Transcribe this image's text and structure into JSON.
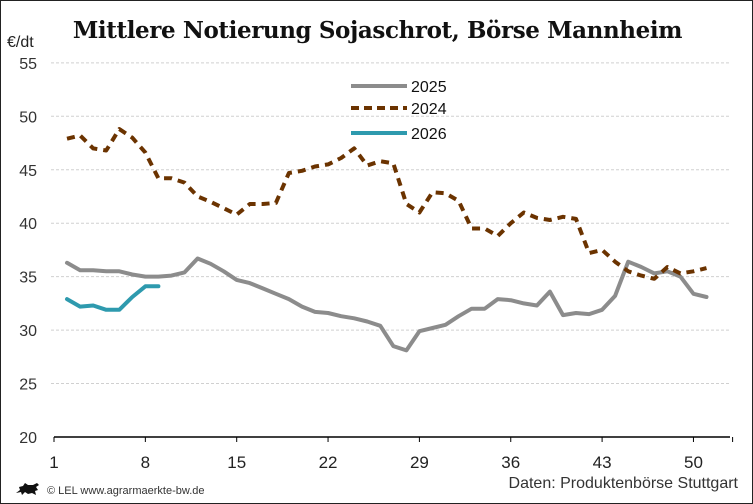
{
  "header": {
    "title": "Mittlere Notierung Sojaschrot, Börse Mannheim",
    "unit": "€/dt"
  },
  "footer": {
    "copyright": "© LEL www.agrarmaerkte-bw.de",
    "source": "Daten: Produktenbörse Stuttgart",
    "logo_icon": "lion-icon"
  },
  "colors": {
    "s2025": "#8c8c8c",
    "s2024": "#6b3300",
    "s2026": "#2e9aae",
    "grid": "#d0d0d0"
  },
  "chart_data": {
    "type": "line",
    "title": "Mittlere Notierung Sojaschrot, Börse Mannheim",
    "xlabel": "",
    "ylabel": "€/dt",
    "ylim": [
      20,
      55
    ],
    "xlim": [
      1,
      53
    ],
    "yticks": [
      20,
      25,
      30,
      35,
      40,
      45,
      50,
      55
    ],
    "xticks": [
      1,
      8,
      15,
      22,
      29,
      36,
      43,
      50
    ],
    "grid": true,
    "legend_position": "top-center",
    "series": [
      {
        "name": "2025",
        "style": "solid",
        "color": "#8c8c8c",
        "x": [
          2,
          3,
          4,
          5,
          6,
          7,
          8,
          9,
          10,
          11,
          12,
          13,
          14,
          15,
          16,
          17,
          18,
          19,
          20,
          21,
          22,
          23,
          24,
          25,
          26,
          27,
          28,
          29,
          30,
          31,
          32,
          33,
          34,
          35,
          36,
          37,
          38,
          39,
          40,
          41,
          42,
          43,
          44,
          45,
          46,
          47,
          48,
          49,
          50,
          51
        ],
        "values": [
          36.3,
          35.6,
          35.6,
          35.5,
          35.5,
          35.2,
          35.0,
          35.0,
          35.1,
          35.4,
          36.7,
          36.2,
          35.5,
          34.7,
          34.4,
          33.9,
          33.4,
          32.9,
          32.2,
          31.7,
          31.6,
          31.3,
          31.1,
          30.8,
          30.4,
          28.5,
          28.1,
          29.9,
          30.2,
          30.5,
          31.3,
          32.0,
          32.0,
          32.9,
          32.8,
          32.5,
          32.3,
          33.6,
          31.4,
          31.6,
          31.5,
          31.9,
          33.2,
          36.4,
          35.9,
          35.3,
          35.5,
          35.0,
          33.4,
          33.1
        ]
      },
      {
        "name": "2024",
        "style": "dashed",
        "color": "#6b3300",
        "x": [
          2,
          3,
          4,
          5,
          6,
          7,
          8,
          9,
          10,
          11,
          12,
          13,
          14,
          15,
          16,
          17,
          18,
          19,
          20,
          21,
          22,
          23,
          24,
          25,
          26,
          27,
          28,
          29,
          30,
          31,
          32,
          33,
          34,
          35,
          36,
          37,
          38,
          39,
          40,
          41,
          42,
          43,
          44,
          45,
          46,
          47,
          48,
          49,
          50,
          51
        ],
        "values": [
          47.9,
          48.2,
          47.0,
          46.8,
          48.8,
          48.0,
          46.6,
          44.2,
          44.2,
          43.8,
          42.5,
          42.0,
          41.4,
          40.8,
          41.8,
          41.8,
          41.9,
          44.7,
          44.9,
          45.3,
          45.5,
          46.1,
          47.0,
          45.4,
          45.8,
          45.6,
          41.8,
          41.0,
          42.9,
          42.8,
          42.1,
          39.5,
          39.5,
          38.8,
          40.0,
          41.0,
          40.5,
          40.3,
          40.6,
          40.4,
          37.2,
          37.5,
          36.4,
          35.5,
          35.1,
          34.8,
          35.9,
          35.3,
          35.5,
          35.8
        ]
      },
      {
        "name": "2026",
        "style": "solid",
        "color": "#2e9aae",
        "x": [
          2,
          3,
          4,
          5,
          6,
          7,
          8,
          9
        ],
        "values": [
          32.9,
          32.2,
          32.3,
          31.9,
          31.9,
          33.1,
          34.1,
          34.1
        ]
      }
    ]
  }
}
